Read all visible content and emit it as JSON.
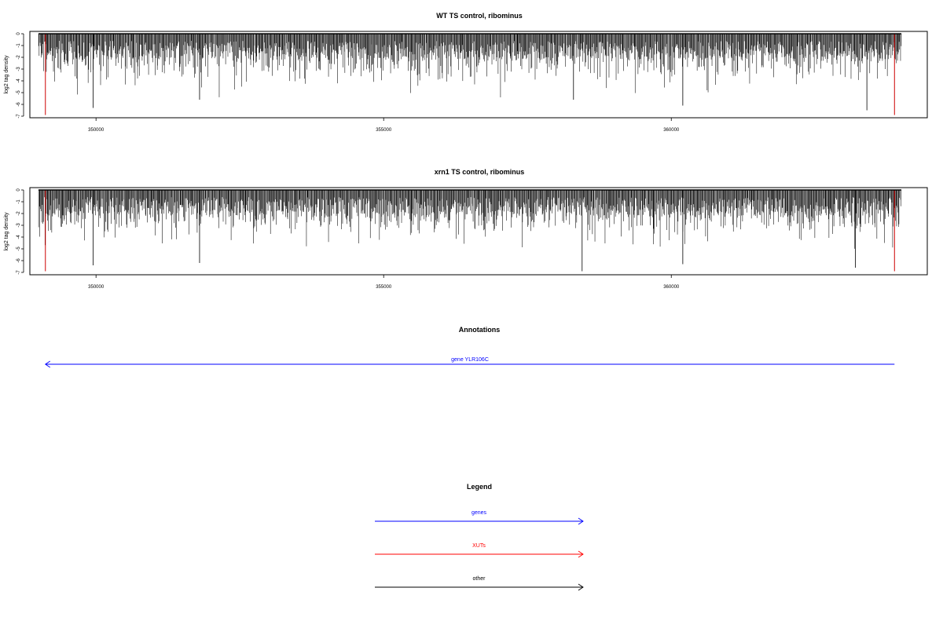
{
  "chart_data": [
    {
      "type": "bar",
      "title": "WT TS control, ribominus",
      "ylabel": "log2 tag density",
      "x_ticks": [
        350000,
        355000,
        360000
      ],
      "y_ticks": [
        0,
        -1,
        -2,
        -3,
        -4,
        -5,
        -6,
        -7
      ],
      "xlim": [
        348850,
        364450
      ],
      "ylim": [
        -7,
        0
      ],
      "x_range": [
        349000,
        364000
      ],
      "baseline": 0,
      "bar_color": "#000000",
      "highlight_color": "#cc0000",
      "highlights": [
        {
          "x": 349120,
          "value": -6.9
        },
        {
          "x": 363880,
          "value": -6.9
        }
      ],
      "notable_values": [
        {
          "x": 349950,
          "value": -6.3
        },
        {
          "x": 351800,
          "value": -5.6
        },
        {
          "x": 358300,
          "value": -5.6
        },
        {
          "x": 360200,
          "value": -6.1
        },
        {
          "x": 363400,
          "value": -6.5
        }
      ],
      "seed": 11
    },
    {
      "type": "bar",
      "title": "xrn1 TS control, ribominus",
      "ylabel": "log2 tag density",
      "x_ticks": [
        350000,
        355000,
        360000
      ],
      "y_ticks": [
        0,
        -1,
        -2,
        -3,
        -4,
        -5,
        -6,
        -7
      ],
      "xlim": [
        348850,
        364450
      ],
      "ylim": [
        -7,
        0
      ],
      "x_range": [
        349000,
        364000
      ],
      "baseline": 0,
      "bar_color": "#000000",
      "highlight_color": "#cc0000",
      "highlights": [
        {
          "x": 349120,
          "value": -6.9
        },
        {
          "x": 363880,
          "value": -6.9
        }
      ],
      "notable_values": [
        {
          "x": 349950,
          "value": -6.4
        },
        {
          "x": 351800,
          "value": -6.2
        },
        {
          "x": 358450,
          "value": -6.9
        },
        {
          "x": 360200,
          "value": -6.3
        },
        {
          "x": 363200,
          "value": -6.6
        }
      ],
      "seed": 29
    }
  ],
  "annotations": {
    "title": "Annotations",
    "genes": [
      {
        "label": "gene YLR106C",
        "start": 349120,
        "end": 363880,
        "strand": "-",
        "color": "#0000ff"
      }
    ]
  },
  "legend": {
    "title": "Legend",
    "items": [
      {
        "label": "genes",
        "color": "#0000ff"
      },
      {
        "label": "XUTs",
        "color": "#ff0000"
      },
      {
        "label": "other",
        "color": "#000000"
      }
    ]
  }
}
